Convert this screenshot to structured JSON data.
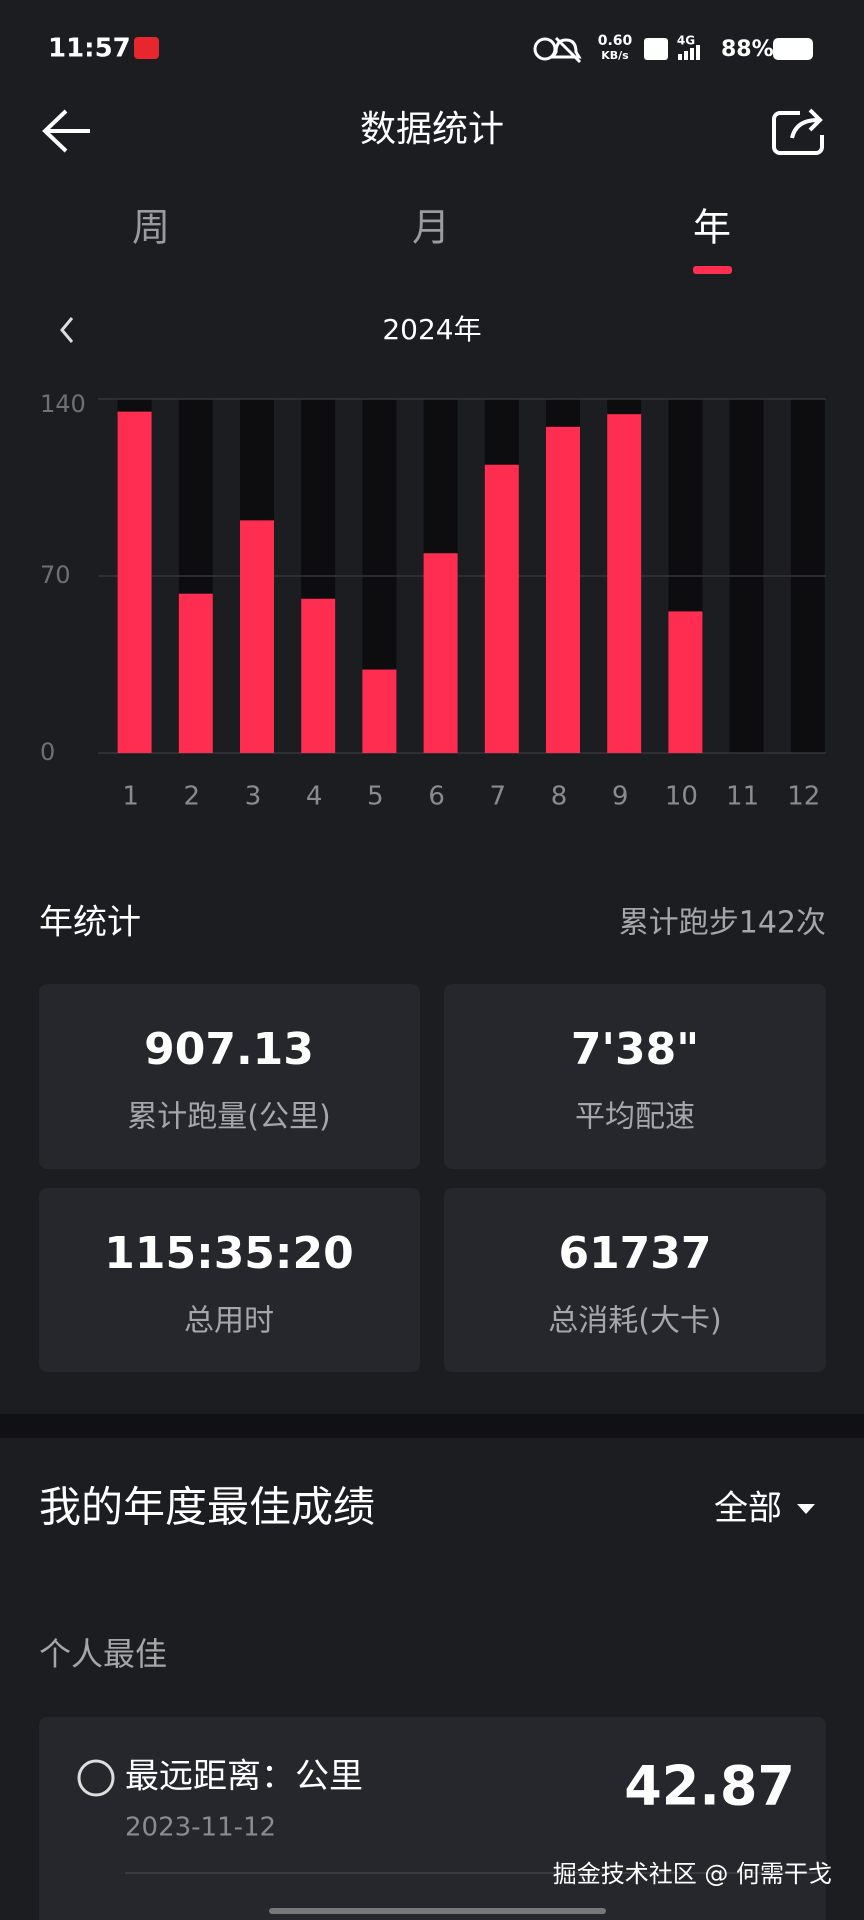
{
  "status_bar": {
    "time": "11:57",
    "speed": "0.60",
    "speed_unit": "KB/s",
    "network": "4G",
    "battery": "88%"
  },
  "header": {
    "title": "数据统计"
  },
  "tabs": [
    "周",
    "月",
    "年"
  ],
  "period": "2024年",
  "chart_data": {
    "type": "bar",
    "categories": [
      "1",
      "2",
      "3",
      "4",
      "5",
      "6",
      "7",
      "8",
      "9",
      "10",
      "11",
      "12"
    ],
    "values": [
      135,
      63,
      92,
      61,
      33,
      79,
      114,
      129,
      134,
      56,
      0,
      0
    ],
    "color": "#ff2d4f",
    "ylim": [
      0,
      140
    ],
    "yticks": [
      0,
      70,
      140
    ],
    "grid": true
  },
  "summary": {
    "title": "年统计",
    "count": "累计跑步142次",
    "stats": [
      {
        "value": "907.13",
        "label": "累计跑量(公里)"
      },
      {
        "value": "7'38\"",
        "label": "平均配速"
      },
      {
        "value": "115:35:20",
        "label": "总用时"
      },
      {
        "value": "61737",
        "label": "总消耗(大卡)"
      }
    ]
  },
  "best": {
    "title": "我的年度最佳成绩",
    "filter": "全部",
    "section": "个人最佳",
    "records": [
      {
        "label": "最远距离：公里",
        "date": "2023-11-12",
        "value": "42.87"
      }
    ]
  },
  "watermark": "掘金技术社区 @ 何需干戈"
}
